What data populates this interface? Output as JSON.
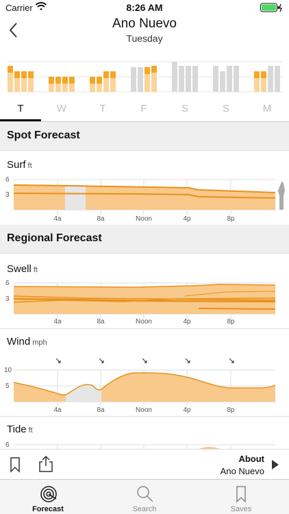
{
  "status_bar": {
    "carrier": "Carrier",
    "time": "8:26 AM"
  },
  "header": {
    "title": "Ano Nuevo",
    "subtitle": "Tuesday"
  },
  "day_tabs": [
    "T",
    "W",
    "T",
    "F",
    "S",
    "S",
    "M"
  ],
  "sections": {
    "spot": "Spot Forecast",
    "regional": "Regional Forecast"
  },
  "charts": {
    "surf": {
      "title": "Surf",
      "unit": "ft",
      "y_ticks": [
        "6",
        "3"
      ]
    },
    "swell": {
      "title": "Swell",
      "unit": "ft",
      "y_ticks": [
        "6",
        "3"
      ]
    },
    "wind": {
      "title": "Wind",
      "unit": "mph",
      "y_ticks": [
        "10",
        "5"
      ]
    },
    "tide": {
      "title": "Tide",
      "unit": "ft",
      "y_ticks": [
        "6"
      ]
    },
    "x_ticks": [
      "4a",
      "8a",
      "Noon",
      "4p",
      "8p"
    ]
  },
  "toolbar": {
    "about_label": "About",
    "about_value": "Ano Nuevo"
  },
  "tab_bar": {
    "forecast": "Forecast",
    "search": "Search",
    "saves": "Saves"
  },
  "colors": {
    "accent": "#f5a623",
    "fill": "#f8c98a",
    "gray": "#d8d8d8",
    "line": "#e8901a"
  }
}
